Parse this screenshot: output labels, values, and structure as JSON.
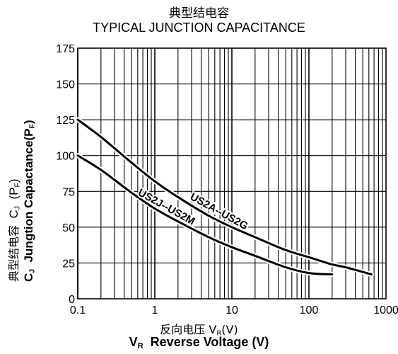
{
  "chart_data": {
    "type": "line",
    "title_cn": "典型结电容",
    "title": "TYPICAL JUNCTION CAPACITANCE",
    "xlabel_cn": "反向电压",
    "xlabel_sym_cn": "V",
    "xlabel_sym_sub_cn": "R",
    "xlabel_unit_cn": "(V)",
    "xlabel_sym": "V",
    "xlabel_sym_sub": "R",
    "xlabel": "Reverse Voltage (V)",
    "ylabel_cn": "典型结电容",
    "ylabel_sym_cn": "C",
    "ylabel_sym_sub_cn": "J",
    "ylabel_unit_cn": "(P",
    "ylabel_unit_sub_cn": "F",
    "ylabel_unit_close_cn": ")",
    "ylabel_sym": "C",
    "ylabel_sym_sub": "J",
    "ylabel": "Jungtion Capactance(P",
    "ylabel_unit_sub": "F",
    "ylabel_close": ")",
    "x_scale": "log",
    "xlim": [
      0.1,
      1000
    ],
    "ylim": [
      0,
      175
    ],
    "x_ticks": [
      "0.1",
      "1",
      "10",
      "100",
      "1000"
    ],
    "y_ticks": [
      "0",
      "25",
      "50",
      "75",
      "100",
      "125",
      "150",
      "175"
    ],
    "grid": true,
    "series": [
      {
        "name": "US2A--US2G",
        "x": [
          0.1,
          0.2,
          0.5,
          1,
          2,
          5,
          10,
          20,
          50,
          100,
          200,
          300,
          650
        ],
        "y": [
          125,
          113,
          95,
          82,
          71,
          58,
          50,
          43,
          34,
          29,
          24,
          22,
          17
        ]
      },
      {
        "name": "US2J--US2M",
        "x": [
          0.1,
          0.2,
          0.5,
          1,
          2,
          5,
          10,
          20,
          50,
          100,
          200
        ],
        "y": [
          100,
          90,
          74,
          63,
          54,
          43,
          36,
          30,
          22,
          18,
          17
        ]
      }
    ],
    "colors": {
      "line": "#000000",
      "grid": "#000000",
      "background": "#ffffff"
    }
  }
}
